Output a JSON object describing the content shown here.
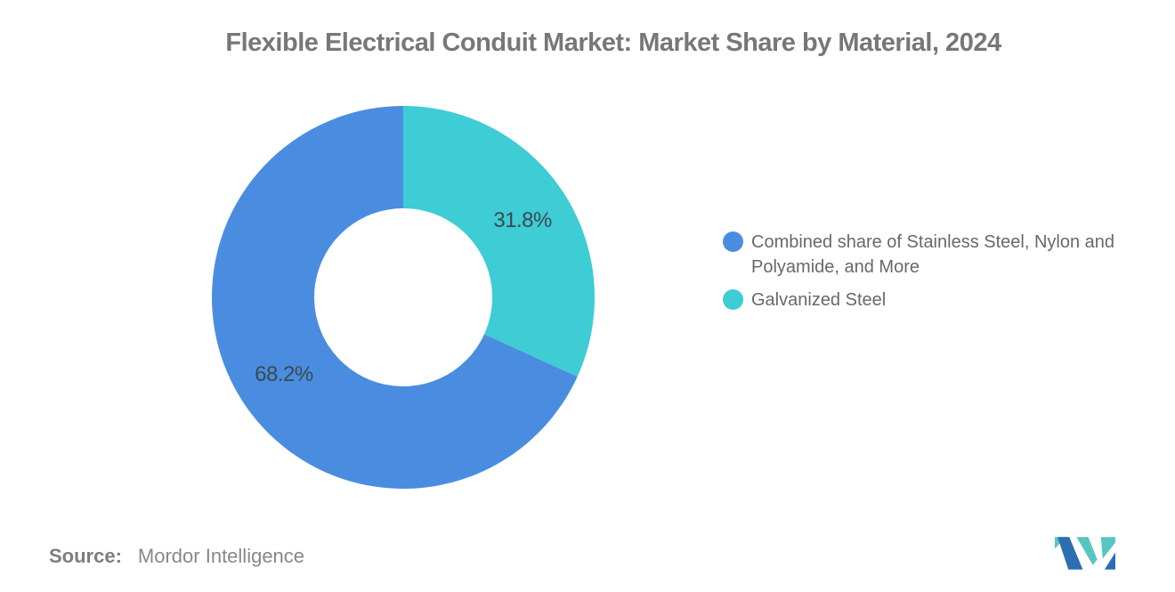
{
  "chart_data": {
    "type": "donut",
    "title": "Flexible Electrical Conduit Market: Market Share by Material, 2024",
    "unit": "%",
    "slices": [
      {
        "id": "combined-materials",
        "label": "Combined share of Stainless Steel, Nylon and Polyamide, and More",
        "value": 68.2,
        "data_label": "68.2%",
        "color": "#4a8de0"
      },
      {
        "id": "galvanized-steel",
        "label": "Galvanized Steel",
        "value": 31.8,
        "data_label": "31.8%",
        "color": "#3eccd5"
      }
    ],
    "layout": {
      "donut_hole_ratio": 0.465,
      "start_angle_deg": 0,
      "first_series_direction": "counterclockwise_from_top",
      "legend_position": "right",
      "data_label_color": "#3d484e",
      "grid": false
    }
  },
  "source": {
    "label": "Source:",
    "value": "Mordor Intelligence"
  },
  "branding": {
    "logo": "mordor-intelligence-logo",
    "colors": {
      "teal": "#59c5c2",
      "blue": "#2c6fb0"
    }
  }
}
